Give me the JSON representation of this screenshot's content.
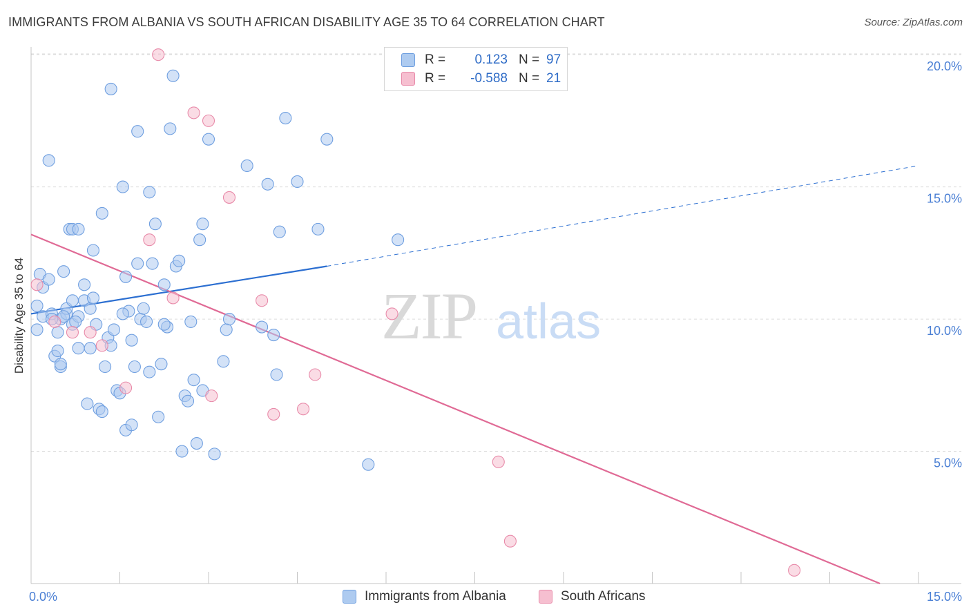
{
  "title": "IMMIGRANTS FROM ALBANIA VS SOUTH AFRICAN DISABILITY AGE 35 TO 64 CORRELATION CHART",
  "source": "Source: ZipAtlas.com",
  "watermark": {
    "zip": "ZIP",
    "atlas": "atlas"
  },
  "legend": {
    "rows": [
      {
        "r_label": "R =",
        "r_value": "0.123",
        "n_label": "N =",
        "n_value": "97"
      },
      {
        "r_label": "R =",
        "r_value": "-0.588",
        "n_label": "N =",
        "n_value": "21"
      }
    ]
  },
  "bottom_legend": [
    "Immigrants from Albania",
    "South Africans"
  ],
  "colors": {
    "albania_fill": "#aecbf0",
    "albania_stroke": "#6f9fe0",
    "albania_line": "#2c6fd1",
    "sa_fill": "#f6bfd0",
    "sa_stroke": "#e88aa9",
    "sa_line": "#e06a95",
    "tick_label": "#4a7fd4",
    "grid": "#dcdcdc"
  },
  "chart_data": {
    "type": "scatter",
    "title": "IMMIGRANTS FROM ALBANIA VS SOUTH AFRICAN DISABILITY AGE 35 TO 64 CORRELATION CHART",
    "xlabel": "",
    "ylabel": "Disability Age 35 to 64",
    "xlim": [
      0,
      15
    ],
    "ylim": [
      0,
      20.5
    ],
    "x_tick_labels": [
      "0.0%",
      "15.0%"
    ],
    "y_ticks": [
      5,
      10,
      15,
      20
    ],
    "y_tick_labels": [
      "5.0%",
      "10.0%",
      "15.0%",
      "20.0%"
    ],
    "grid": true,
    "series": [
      {
        "name": "Immigrants from Albania",
        "r": 0.123,
        "n": 97,
        "trend": {
          "x0": 0.0,
          "y0": 10.2,
          "x1": 5.0,
          "y1": 12.0,
          "dashed_to_x": 15.0,
          "dashed_to_y": 15.8
        },
        "points": [
          [
            0.1,
            10.5
          ],
          [
            0.1,
            9.6
          ],
          [
            0.15,
            11.7
          ],
          [
            0.2,
            10.1
          ],
          [
            0.2,
            11.2
          ],
          [
            0.3,
            16.0
          ],
          [
            0.3,
            11.5
          ],
          [
            0.35,
            10.2
          ],
          [
            0.4,
            8.6
          ],
          [
            0.45,
            8.8
          ],
          [
            0.45,
            9.5
          ],
          [
            0.5,
            8.2
          ],
          [
            0.5,
            10.0
          ],
          [
            0.5,
            8.3
          ],
          [
            0.55,
            11.8
          ],
          [
            0.6,
            10.2
          ],
          [
            0.6,
            10.4
          ],
          [
            0.65,
            13.4
          ],
          [
            0.7,
            9.8
          ],
          [
            0.7,
            10.7
          ],
          [
            0.7,
            13.4
          ],
          [
            0.8,
            13.4
          ],
          [
            0.8,
            8.9
          ],
          [
            0.8,
            10.1
          ],
          [
            0.9,
            11.3
          ],
          [
            0.9,
            10.7
          ],
          [
            0.95,
            6.8
          ],
          [
            1.0,
            8.9
          ],
          [
            1.0,
            10.4
          ],
          [
            1.05,
            10.8
          ],
          [
            1.05,
            12.6
          ],
          [
            1.1,
            9.8
          ],
          [
            1.15,
            6.6
          ],
          [
            1.2,
            6.5
          ],
          [
            1.2,
            14.0
          ],
          [
            1.25,
            8.2
          ],
          [
            1.3,
            9.3
          ],
          [
            1.35,
            18.7
          ],
          [
            1.35,
            9.0
          ],
          [
            1.4,
            9.6
          ],
          [
            1.45,
            7.3
          ],
          [
            1.5,
            7.2
          ],
          [
            1.55,
            15.0
          ],
          [
            1.6,
            5.8
          ],
          [
            1.6,
            11.6
          ],
          [
            1.65,
            10.3
          ],
          [
            1.7,
            6.0
          ],
          [
            1.7,
            9.2
          ],
          [
            1.75,
            8.2
          ],
          [
            1.8,
            17.1
          ],
          [
            1.8,
            12.1
          ],
          [
            1.85,
            10.0
          ],
          [
            1.9,
            10.4
          ],
          [
            1.95,
            9.9
          ],
          [
            2.0,
            8.0
          ],
          [
            2.0,
            14.8
          ],
          [
            2.05,
            12.1
          ],
          [
            2.1,
            13.6
          ],
          [
            2.15,
            6.3
          ],
          [
            2.2,
            8.3
          ],
          [
            2.25,
            11.3
          ],
          [
            2.3,
            9.7
          ],
          [
            2.35,
            17.2
          ],
          [
            2.4,
            19.2
          ],
          [
            2.45,
            12.0
          ],
          [
            2.5,
            12.2
          ],
          [
            2.55,
            5.0
          ],
          [
            2.6,
            7.1
          ],
          [
            2.65,
            6.9
          ],
          [
            2.7,
            9.9
          ],
          [
            2.75,
            7.7
          ],
          [
            2.8,
            5.3
          ],
          [
            2.85,
            13.0
          ],
          [
            2.9,
            13.6
          ],
          [
            2.9,
            7.3
          ],
          [
            3.0,
            16.8
          ],
          [
            3.1,
            4.9
          ],
          [
            3.25,
            8.4
          ],
          [
            3.3,
            9.6
          ],
          [
            3.35,
            10.0
          ],
          [
            3.65,
            15.8
          ],
          [
            3.9,
            9.7
          ],
          [
            4.0,
            15.1
          ],
          [
            4.1,
            9.4
          ],
          [
            4.15,
            7.9
          ],
          [
            4.2,
            13.3
          ],
          [
            4.3,
            17.6
          ],
          [
            4.5,
            15.2
          ],
          [
            4.85,
            13.4
          ],
          [
            5.0,
            16.8
          ],
          [
            5.7,
            4.5
          ],
          [
            6.2,
            13.0
          ],
          [
            0.35,
            10.0
          ],
          [
            1.55,
            10.2
          ],
          [
            2.25,
            9.8
          ],
          [
            0.55,
            10.1
          ],
          [
            0.75,
            9.9
          ]
        ]
      },
      {
        "name": "South Africans",
        "r": -0.588,
        "n": 21,
        "trend": {
          "x0": 0.0,
          "y0": 13.2,
          "x1": 15.0,
          "y1": -0.6
        },
        "points": [
          [
            0.1,
            11.3
          ],
          [
            0.4,
            9.9
          ],
          [
            0.7,
            9.5
          ],
          [
            1.0,
            9.5
          ],
          [
            1.2,
            9.0
          ],
          [
            1.6,
            7.4
          ],
          [
            2.0,
            13.0
          ],
          [
            2.15,
            20.0
          ],
          [
            2.4,
            10.8
          ],
          [
            2.75,
            17.8
          ],
          [
            3.0,
            17.5
          ],
          [
            3.05,
            7.1
          ],
          [
            3.35,
            14.6
          ],
          [
            3.9,
            10.7
          ],
          [
            4.1,
            6.4
          ],
          [
            4.6,
            6.6
          ],
          [
            4.8,
            7.9
          ],
          [
            6.1,
            10.2
          ],
          [
            7.9,
            4.6
          ],
          [
            8.1,
            1.6
          ],
          [
            12.9,
            0.5
          ]
        ]
      }
    ]
  }
}
